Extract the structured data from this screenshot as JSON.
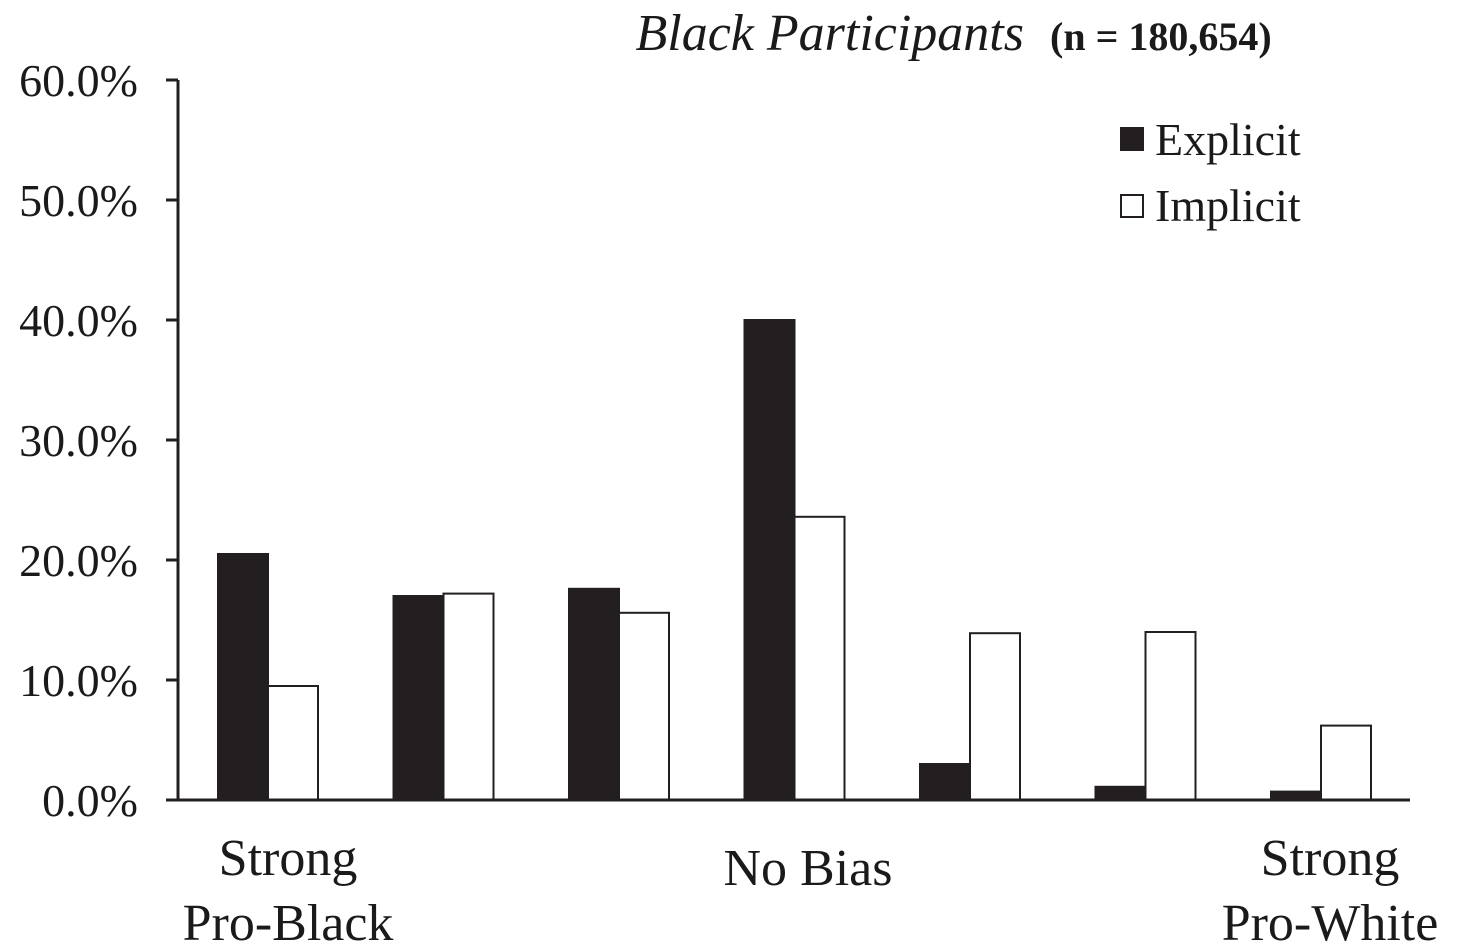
{
  "chart_data": {
    "type": "bar",
    "title": "Black Participants",
    "subtitle": "(n = 180,654)",
    "xlabel": "",
    "ylabel": "",
    "ylim": [
      0,
      60
    ],
    "yticks": [
      "0.0%",
      "10.0%",
      "20.0%",
      "30.0%",
      "40.0%",
      "50.0%",
      "60.0%"
    ],
    "yunit": "%",
    "grid": false,
    "legend_position": "top-right",
    "category_labels": [
      {
        "line1": "Strong",
        "line2": "Pro-Black"
      },
      {
        "line1": "No Bias",
        "line2": ""
      },
      {
        "line1": "Strong",
        "line2": "Pro-White"
      }
    ],
    "num_groups": 7,
    "series": [
      {
        "name": "Explicit",
        "color": "#231f20",
        "values": [
          20.5,
          17.0,
          17.6,
          40.0,
          3.0,
          1.1,
          0.7
        ]
      },
      {
        "name": "Implicit",
        "color": "#ffffff",
        "values": [
          9.5,
          17.2,
          15.6,
          23.6,
          13.9,
          14.0,
          6.2
        ]
      }
    ]
  }
}
